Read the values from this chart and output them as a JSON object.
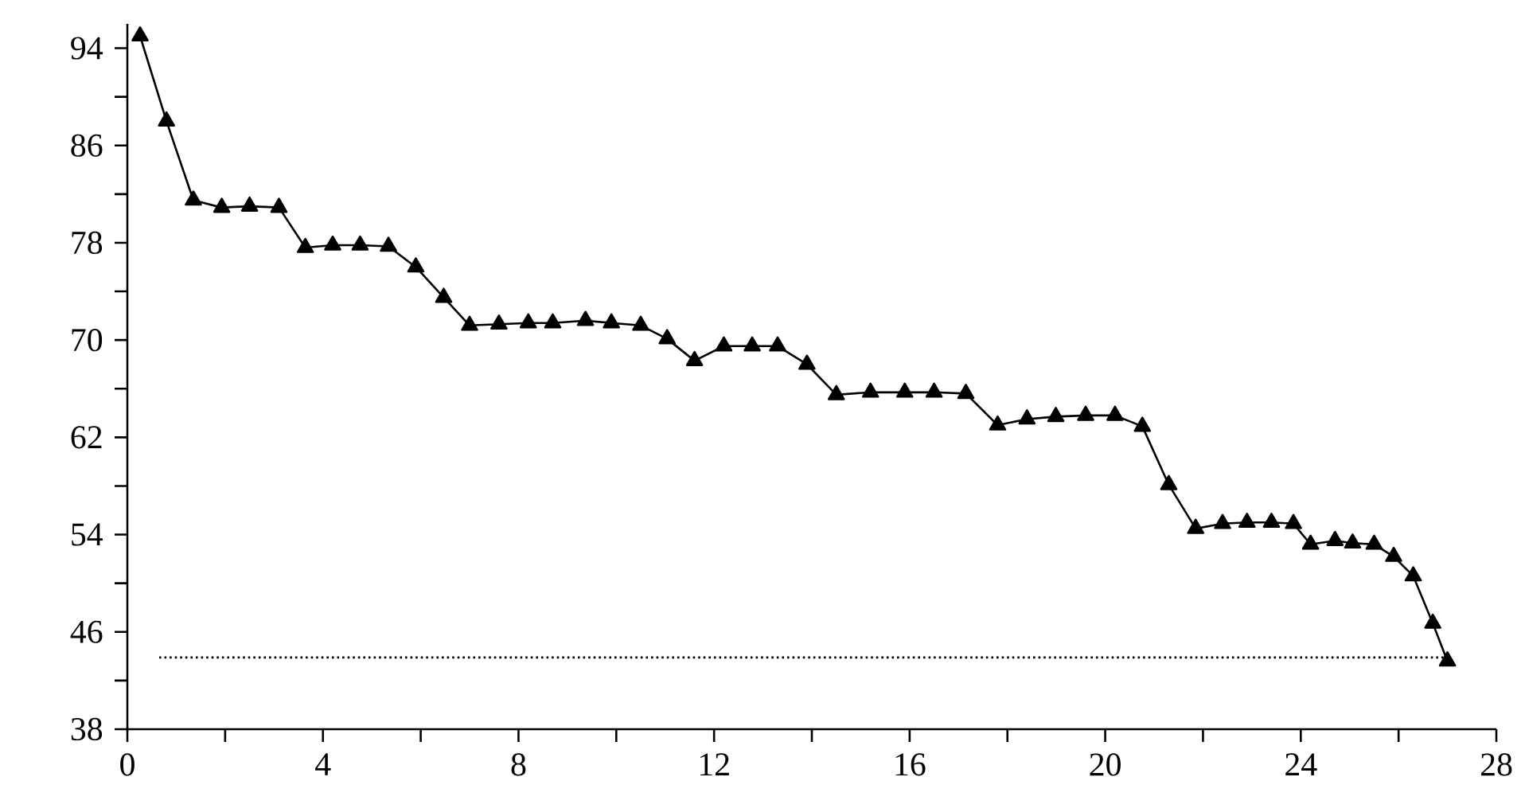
{
  "chart_data": {
    "type": "line",
    "xlim": [
      0,
      28
    ],
    "ylim": [
      38,
      96
    ],
    "xticks": [
      0,
      {
        "value": 2,
        "label": null
      },
      4,
      {
        "value": 6,
        "label": null
      },
      8,
      {
        "value": 10,
        "label": null
      },
      12,
      {
        "value": 14,
        "label": null
      },
      16,
      {
        "value": 18,
        "label": null
      },
      20,
      {
        "value": 22,
        "label": null
      },
      24,
      {
        "value": 26,
        "label": null
      },
      28
    ],
    "yticks": [
      38,
      {
        "value": 42,
        "label": null
      },
      46,
      {
        "value": 50,
        "label": null
      },
      54,
      {
        "value": 58,
        "label": null
      },
      62,
      {
        "value": 66,
        "label": null
      },
      70,
      {
        "value": 74,
        "label": null
      },
      78,
      {
        "value": 82,
        "label": null
      },
      86,
      {
        "value": 90,
        "label": null
      },
      94
    ],
    "grid": false,
    "legend": false,
    "series": [
      {
        "color": "#000000",
        "marker": "triangle",
        "line_style": "solid",
        "x": [
          0.26,
          0.8,
          1.35,
          1.93,
          2.5,
          3.1,
          3.64,
          4.2,
          4.76,
          5.34,
          5.9,
          6.47,
          7.0,
          7.6,
          8.2,
          8.7,
          9.37,
          9.9,
          10.5,
          11.04,
          11.6,
          12.2,
          12.78,
          13.3,
          13.9,
          14.5,
          15.2,
          15.9,
          16.5,
          17.15,
          17.8,
          18.4,
          18.99,
          19.6,
          20.2,
          20.76,
          21.3,
          21.85,
          22.4,
          22.9,
          23.4,
          23.85,
          24.2,
          24.7,
          25.06,
          25.5,
          25.9,
          26.3,
          26.7,
          27.0
        ],
        "values": [
          95,
          88,
          81.5,
          80.9,
          81,
          80.9,
          77.6,
          77.8,
          77.8,
          77.7,
          76,
          73.5,
          71.2,
          71.3,
          71.4,
          71.4,
          71.6,
          71.4,
          71.2,
          70.1,
          68.3,
          69.5,
          69.5,
          69.5,
          68,
          65.5,
          65.7,
          65.7,
          65.7,
          65.6,
          63,
          63.5,
          63.7,
          63.8,
          63.8,
          62.9,
          58.1,
          54.5,
          54.9,
          55,
          55,
          54.9,
          53.2,
          53.5,
          53.3,
          53.2,
          52.2,
          50.6,
          46.7,
          43.6
        ]
      },
      {
        "color": "#000000",
        "marker": "none",
        "line_style": "dotted",
        "x": [
          0.65,
          27.0
        ],
        "values": [
          43.9,
          43.9
        ]
      }
    ]
  }
}
